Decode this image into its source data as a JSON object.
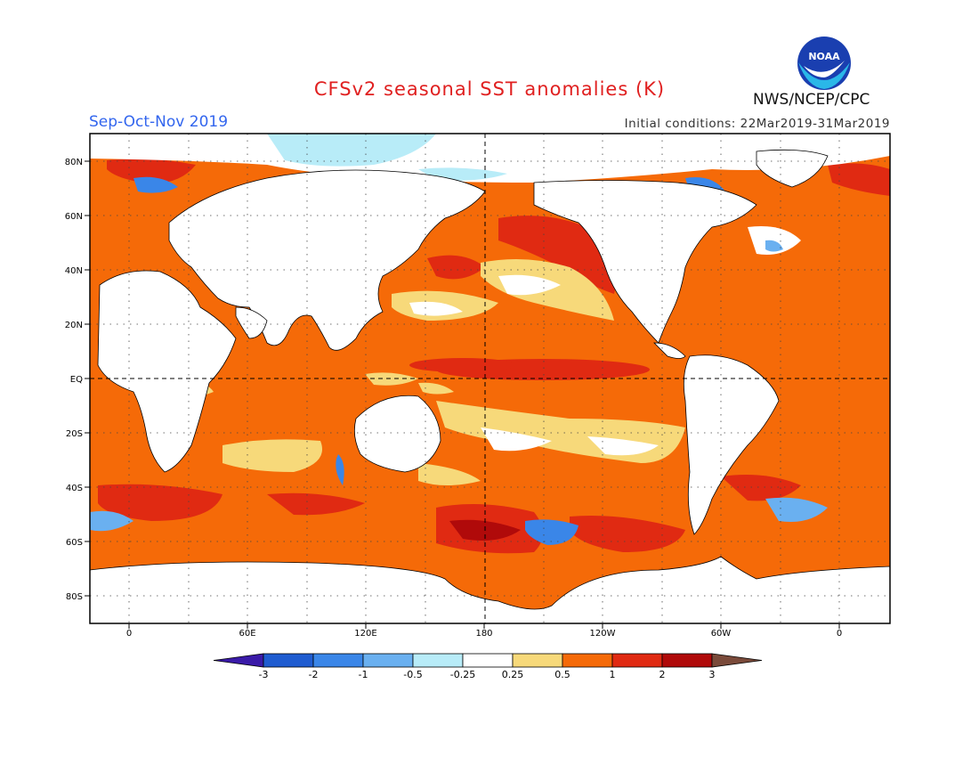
{
  "header": {
    "title": "CFSv2 seasonal SST anomalies (K)",
    "season": "Sep-Oct-Nov 2019",
    "initial_conditions": "Initial conditions: 22Mar2019-31Mar2019",
    "agency": "NWS/NCEP/CPC",
    "logo_text": "NOAA"
  },
  "map": {
    "lat_labels": [
      "80N",
      "60N",
      "40N",
      "20N",
      "EQ",
      "20S",
      "40S",
      "60S",
      "80S"
    ],
    "lon_labels": [
      "0",
      "60E",
      "120E",
      "180",
      "120W",
      "60W",
      "0"
    ]
  },
  "colorbar": {
    "tick_labels": [
      "-3",
      "-2",
      "-1",
      "-0.5",
      "-0.25",
      "0.25",
      "0.5",
      "1",
      "2",
      "3"
    ],
    "colors": [
      "#3a1aa8",
      "#1f5cd0",
      "#3a86e8",
      "#6ab0f0",
      "#b8ecf8",
      "#ffffff",
      "#f7d97a",
      "#f56a08",
      "#e02a12",
      "#b00a0a",
      "#7a4a3a"
    ]
  }
}
